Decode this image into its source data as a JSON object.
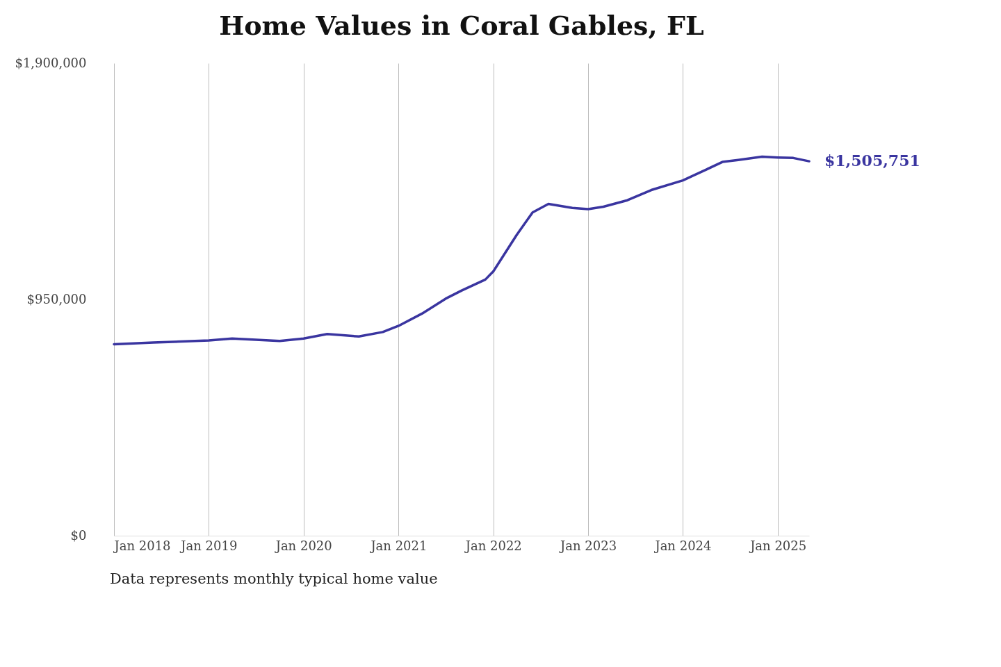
{
  "chart_data": {
    "type": "line",
    "title": "Home Values in Coral Gables, FL",
    "annotations": [
      "Data represents monthly typical home value"
    ],
    "xlim": [
      "2018-01",
      "2025-05"
    ],
    "xticks": [
      {
        "value": "2018-01",
        "label": "Jan 2018"
      },
      {
        "value": "2019-01",
        "label": "Jan 2019"
      },
      {
        "value": "2020-01",
        "label": "Jan 2020"
      },
      {
        "value": "2021-01",
        "label": "Jan 2021"
      },
      {
        "value": "2022-01",
        "label": "Jan 2022"
      },
      {
        "value": "2023-01",
        "label": "Jan 2023"
      },
      {
        "value": "2024-01",
        "label": "Jan 2024"
      },
      {
        "value": "2025-01",
        "label": "Jan 2025"
      }
    ],
    "ylim": [
      0,
      1900000
    ],
    "yticks": [
      {
        "value": 0,
        "label": "$0"
      },
      {
        "value": 950000,
        "label": "$950,000"
      },
      {
        "value": 1900000,
        "label": "$1,900,000"
      }
    ],
    "grid": "x",
    "marker": "none",
    "line_style": "solid",
    "x": [
      "2018-01",
      "2018-06",
      "2019-01",
      "2019-04",
      "2019-10",
      "2020-01",
      "2020-04",
      "2020-08",
      "2020-11",
      "2021-01",
      "2021-04",
      "2021-07",
      "2021-09",
      "2021-12",
      "2022-01",
      "2022-04",
      "2022-06",
      "2022-08",
      "2022-11",
      "2023-01",
      "2023-03",
      "2023-06",
      "2023-09",
      "2024-01",
      "2024-04",
      "2024-06",
      "2024-08",
      "2024-11",
      "2025-01",
      "2025-03",
      "2025-05"
    ],
    "series": [
      {
        "color": "#3a35a0",
        "values": [
          770000,
          777000,
          785000,
          793000,
          783000,
          793000,
          811000,
          801000,
          819000,
          844000,
          893000,
          953000,
          986000,
          1030000,
          1063000,
          1210000,
          1300000,
          1334000,
          1318000,
          1313000,
          1323000,
          1349000,
          1390000,
          1429000,
          1473000,
          1503000,
          1511000,
          1524000,
          1521000,
          1519000,
          1505751
        ],
        "value_labels": [
          null,
          null,
          null,
          null,
          null,
          null,
          null,
          null,
          null,
          null,
          null,
          null,
          null,
          null,
          null,
          null,
          null,
          null,
          null,
          null,
          null,
          null,
          null,
          null,
          null,
          null,
          null,
          null,
          null,
          null,
          "$1,505,751"
        ]
      }
    ]
  }
}
